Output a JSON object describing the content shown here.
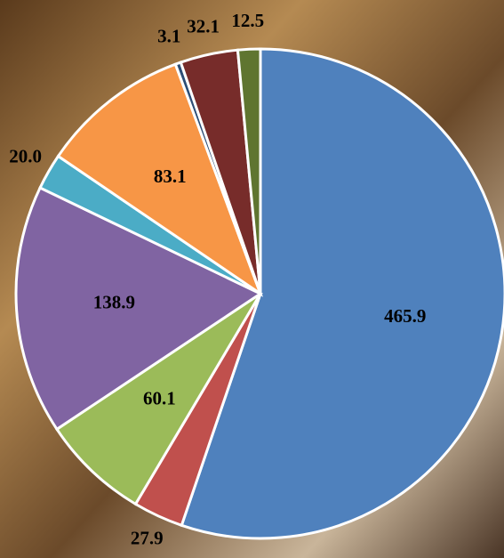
{
  "chart_data": {
    "type": "pie",
    "values": [
      465.9,
      27.9,
      60.1,
      138.9,
      20.0,
      83.1,
      3.1,
      32.1,
      12.5
    ],
    "value_labels": [
      "465.9",
      "27.9",
      "60.1",
      "138.9",
      "20.0",
      "83.1",
      "3.1",
      "32.1",
      "12.5"
    ],
    "colors": [
      "#4f81bd",
      "#c0504d",
      "#9bbb59",
      "#8064a2",
      "#4bacc6",
      "#f79646",
      "#2c4d75",
      "#772c2a",
      "#5f7530"
    ]
  }
}
